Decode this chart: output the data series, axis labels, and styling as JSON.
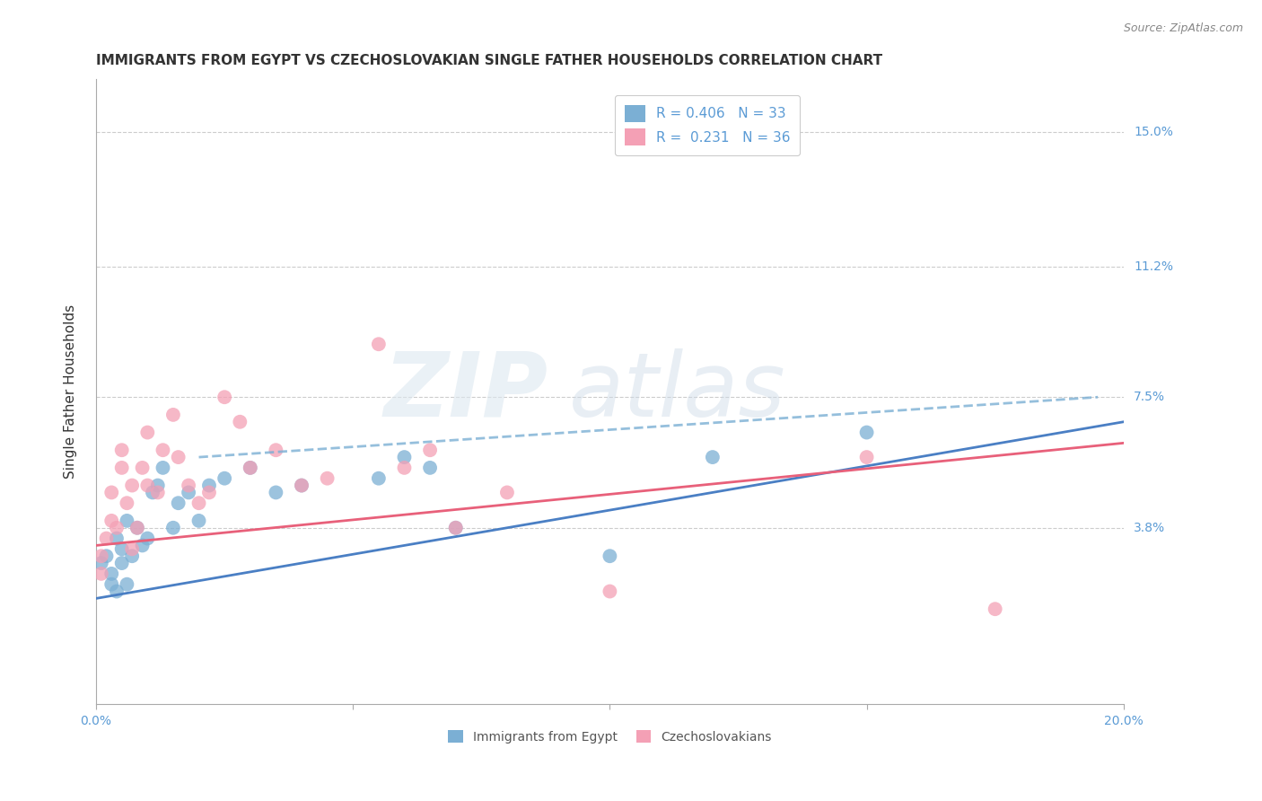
{
  "title": "IMMIGRANTS FROM EGYPT VS CZECHOSLOVAKIAN SINGLE FATHER HOUSEHOLDS CORRELATION CHART",
  "source": "Source: ZipAtlas.com",
  "ylabel": "Single Father Households",
  "legend_label1": "Immigrants from Egypt",
  "legend_label2": "Czechoslovakians",
  "R1": 0.406,
  "N1": 33,
  "R2": 0.231,
  "N2": 36,
  "xlim": [
    0.0,
    0.2
  ],
  "ylim": [
    -0.012,
    0.165
  ],
  "yticks": [
    0.0,
    0.038,
    0.075,
    0.112,
    0.15
  ],
  "ytick_labels": [
    "",
    "3.8%",
    "7.5%",
    "11.2%",
    "15.0%"
  ],
  "xticks": [
    0.0,
    0.05,
    0.1,
    0.15,
    0.2
  ],
  "color_blue": "#7bafd4",
  "color_pink": "#f4a0b5",
  "color_line_blue": "#4a7fc4",
  "color_line_pink": "#e8607a",
  "color_axis_text": "#5b9bd5",
  "color_grid": "#cccccc",
  "blue_scatter_x": [
    0.001,
    0.002,
    0.003,
    0.003,
    0.004,
    0.004,
    0.005,
    0.005,
    0.006,
    0.006,
    0.007,
    0.008,
    0.009,
    0.01,
    0.011,
    0.012,
    0.013,
    0.015,
    0.016,
    0.018,
    0.02,
    0.022,
    0.025,
    0.03,
    0.035,
    0.04,
    0.055,
    0.06,
    0.065,
    0.07,
    0.1,
    0.12,
    0.15
  ],
  "blue_scatter_y": [
    0.028,
    0.03,
    0.025,
    0.022,
    0.02,
    0.035,
    0.028,
    0.032,
    0.022,
    0.04,
    0.03,
    0.038,
    0.033,
    0.035,
    0.048,
    0.05,
    0.055,
    0.038,
    0.045,
    0.048,
    0.04,
    0.05,
    0.052,
    0.055,
    0.048,
    0.05,
    0.052,
    0.058,
    0.055,
    0.038,
    0.03,
    0.058,
    0.065
  ],
  "pink_scatter_x": [
    0.001,
    0.001,
    0.002,
    0.003,
    0.003,
    0.004,
    0.005,
    0.005,
    0.006,
    0.007,
    0.007,
    0.008,
    0.009,
    0.01,
    0.01,
    0.012,
    0.013,
    0.015,
    0.016,
    0.018,
    0.02,
    0.022,
    0.025,
    0.028,
    0.03,
    0.035,
    0.04,
    0.045,
    0.055,
    0.06,
    0.065,
    0.07,
    0.08,
    0.1,
    0.15,
    0.175
  ],
  "pink_scatter_y": [
    0.03,
    0.025,
    0.035,
    0.04,
    0.048,
    0.038,
    0.055,
    0.06,
    0.045,
    0.05,
    0.032,
    0.038,
    0.055,
    0.065,
    0.05,
    0.048,
    0.06,
    0.07,
    0.058,
    0.05,
    0.045,
    0.048,
    0.075,
    0.068,
    0.055,
    0.06,
    0.05,
    0.052,
    0.09,
    0.055,
    0.06,
    0.038,
    0.048,
    0.02,
    0.058,
    0.015
  ],
  "blue_line_x": [
    0.0,
    0.2
  ],
  "blue_line_y": [
    0.018,
    0.068
  ],
  "pink_line_x": [
    0.0,
    0.2
  ],
  "pink_line_y": [
    0.033,
    0.062
  ],
  "dash_line_x": [
    0.02,
    0.195
  ],
  "dash_line_y": [
    0.058,
    0.075
  ],
  "title_fontsize": 11,
  "axis_label_fontsize": 11,
  "tick_fontsize": 10,
  "legend_fontsize": 11
}
